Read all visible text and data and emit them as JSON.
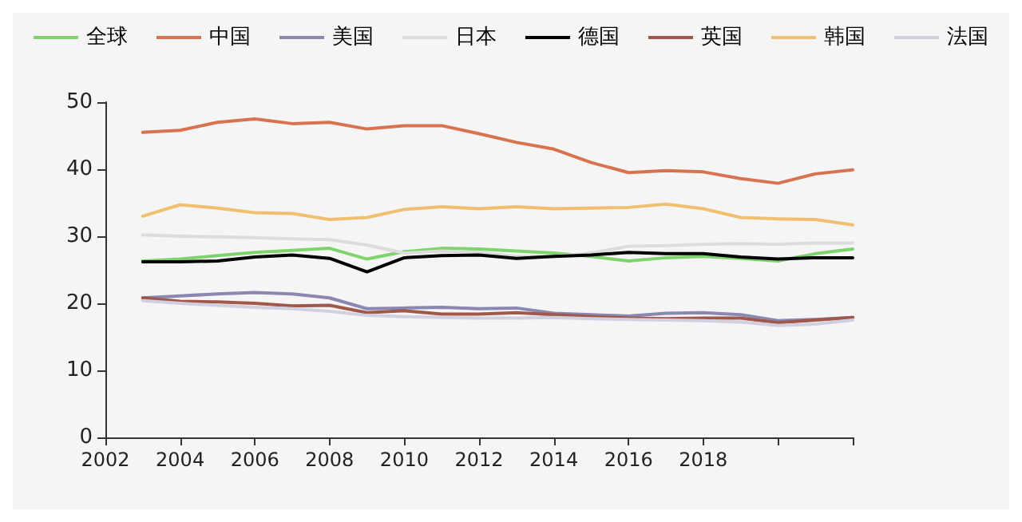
{
  "chart_data": {
    "type": "line",
    "x": [
      2003,
      2004,
      2005,
      2006,
      2007,
      2008,
      2009,
      2010,
      2011,
      2012,
      2013,
      2014,
      2015,
      2016,
      2017,
      2018,
      2019,
      2020,
      2021,
      2022
    ],
    "xlim": [
      2002,
      2022
    ],
    "xticks": [
      2002,
      2004,
      2006,
      2008,
      2010,
      2012,
      2014,
      2016,
      2018,
      {
        "value": 2020,
        "label": null
      },
      {
        "value": 2022,
        "label": null
      }
    ],
    "ylim": [
      0,
      50
    ],
    "yticks": [
      0,
      10,
      20,
      30,
      40,
      50
    ],
    "grid": false,
    "legend": "top",
    "marker": "none",
    "line_style": "solid",
    "series": [
      {
        "name": "全球",
        "color": "#7fd36e",
        "values": [
          26.3,
          26.6,
          27.1,
          27.6,
          27.9,
          28.2,
          26.6,
          27.7,
          28.2,
          28.1,
          27.8,
          27.5,
          27,
          26.3,
          26.8,
          27,
          26.7,
          26.3,
          27.4,
          28.1
        ]
      },
      {
        "name": "中国",
        "color": "#d9724f",
        "values": [
          45.5,
          45.8,
          47,
          47.5,
          46.8,
          47,
          46,
          46.5,
          46.5,
          45.3,
          44,
          43,
          41,
          39.5,
          39.8,
          39.6,
          38.6,
          37.9,
          39.3,
          39.9
        ]
      },
      {
        "name": "美国",
        "color": "#8a87b0",
        "values": [
          20.8,
          21.1,
          21.4,
          21.6,
          21.4,
          20.8,
          19.2,
          19.3,
          19.4,
          19.2,
          19.3,
          18.5,
          18.3,
          18.1,
          18.5,
          18.6,
          18.3,
          17.4,
          17.6,
          17.9
        ]
      },
      {
        "name": "日本",
        "color": "#dcdcdc",
        "values": [
          30.2,
          30,
          29.9,
          29.8,
          29.6,
          29.5,
          28.7,
          27.5,
          27.8,
          27.6,
          27,
          27,
          27.5,
          28.5,
          28.6,
          28.8,
          28.9,
          28.8,
          29,
          29
        ]
      },
      {
        "name": "德国",
        "color": "#000000",
        "values": [
          26.2,
          26.2,
          26.3,
          26.9,
          27.2,
          26.7,
          24.7,
          26.8,
          27.1,
          27.2,
          26.7,
          27,
          27.2,
          27.6,
          27.4,
          27.4,
          26.9,
          26.6,
          26.8,
          26.8
        ]
      },
      {
        "name": "英国",
        "color": "#a0584a",
        "values": [
          20.8,
          20.3,
          20.2,
          20,
          19.6,
          19.7,
          18.6,
          18.9,
          18.4,
          18.4,
          18.6,
          18.3,
          18,
          17.8,
          17.7,
          17.8,
          17.8,
          17.1,
          17.5,
          17.9
        ]
      },
      {
        "name": "韩国",
        "color": "#f0c070",
        "values": [
          33,
          34.7,
          34.2,
          33.5,
          33.4,
          32.5,
          32.8,
          34,
          34.4,
          34.1,
          34.4,
          34.1,
          34.2,
          34.3,
          34.8,
          34.1,
          32.8,
          32.6,
          32.5,
          31.7
        ]
      },
      {
        "name": "法国",
        "color": "#d0d0e0",
        "values": [
          20.4,
          20,
          19.7,
          19.4,
          19.2,
          18.8,
          18.2,
          18,
          17.9,
          17.8,
          17.8,
          17.9,
          17.7,
          17.6,
          17.5,
          17.4,
          17.2,
          16.7,
          16.9,
          17.5
        ]
      }
    ]
  }
}
